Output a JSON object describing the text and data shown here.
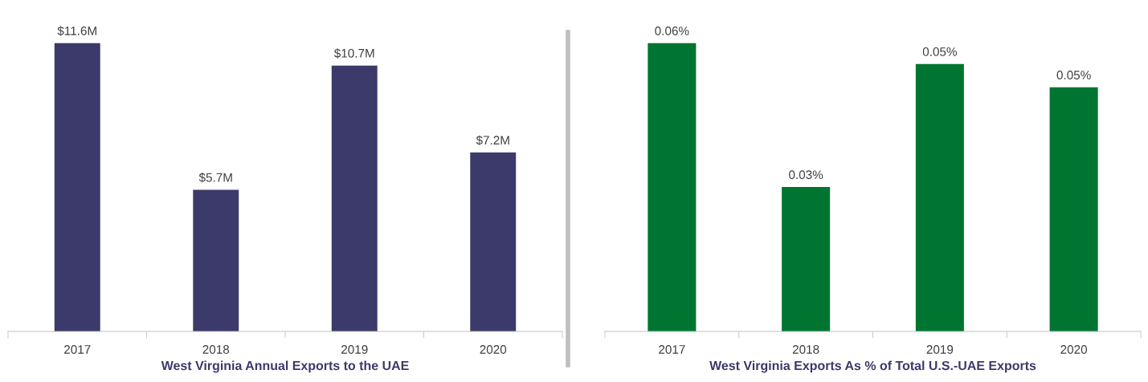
{
  "chart_data": [
    {
      "type": "bar",
      "xlabel": "West Virginia Annual Exports to the UAE",
      "categories": [
        "2017",
        "2018",
        "2019",
        "2020"
      ],
      "values": [
        11.6,
        5.7,
        10.7,
        7.2
      ],
      "color": "#3b3a6a",
      "value_labels": [
        "$11.6M",
        "$5.7M",
        "$10.7M",
        "$7.2M"
      ],
      "tick_labels": "x"
    },
    {
      "type": "bar",
      "xlabel": "West Virginia Exports As % of Total U.S.-UAE Exports",
      "categories": [
        "2017",
        "2018",
        "2019",
        "2020"
      ],
      "values": [
        0.0555,
        0.0278,
        0.0515,
        0.047
      ],
      "color": "#007531",
      "value_labels": [
        "0.06%",
        "0.03%",
        "0.05%",
        "0.05%"
      ],
      "tick_labels": "x"
    }
  ]
}
